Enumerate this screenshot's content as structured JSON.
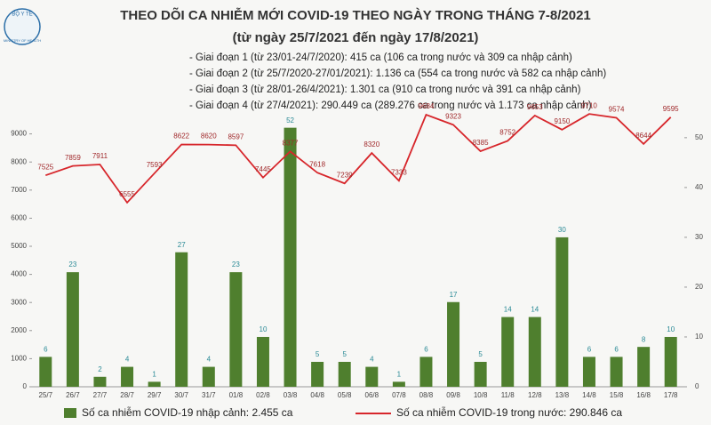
{
  "logo": {
    "top": "BỘ Y TẾ",
    "bottom": "MINISTRY OF HEALTH"
  },
  "chart_data": {
    "type": "combo",
    "title": "THEO DÕI CA NHIỄM MỚI COVID-19 THEO NGÀY TRONG THÁNG 7-8/2021",
    "subtitle": "(từ ngày 25/7/2021 đến ngày 17/8/2021)",
    "annotations": [
      "- Giai đoạn 1 (từ 23/01-24/7/2020): 415 ca (106 ca trong nước và 309 ca nhập cảnh)",
      "- Giai đoạn 2 (từ 25/7/2020-27/01/2021): 1.136 ca (554 ca trong nước và 582 ca nhập cảnh)",
      "- Giai đoạn 3 (từ 28/01-26/4/2021): 1.301 ca (910 ca trong nước và 391 ca nhập cảnh)",
      "- Giai đoạn 4 (từ 27/4/2021): 290.449 ca (289.276 ca trong nước và 1.173 ca nhập cảnh)"
    ],
    "categories": [
      "25/7",
      "26/7",
      "27/7",
      "28/7",
      "29/7",
      "30/7",
      "31/7",
      "01/8",
      "02/8",
      "03/8",
      "04/8",
      "05/8",
      "06/8",
      "07/8",
      "08/8",
      "09/8",
      "10/8",
      "11/8",
      "12/8",
      "13/8",
      "14/8",
      "15/8",
      "16/8",
      "17/8"
    ],
    "series": [
      {
        "name": "Số ca nhiễm COVID-19 nhập cảnh: 2.455 ca",
        "type": "bar",
        "axis": "y2",
        "color": "#4f7f2e",
        "values": [
          6,
          23,
          2,
          4,
          1,
          27,
          4,
          23,
          10,
          52,
          5,
          5,
          4,
          1,
          6,
          17,
          5,
          14,
          14,
          30,
          6,
          6,
          8,
          10
        ]
      },
      {
        "name": "Số ca nhiễm COVID-19 trong nước: 290.846 ca",
        "type": "line",
        "axis": "y",
        "color": "#d7262b",
        "values": [
          7525,
          7859,
          7911,
          6555,
          7593,
          8622,
          8620,
          8597,
          7445,
          8377,
          7618,
          7239,
          8320,
          7333,
          9684,
          9323,
          8385,
          8752,
          9653,
          9150,
          9710,
          9574,
          8644,
          9595
        ]
      }
    ],
    "ylim": [
      0,
      10000
    ],
    "yticks": [
      0,
      1000,
      2000,
      3000,
      4000,
      5000,
      6000,
      7000,
      8000,
      9000
    ],
    "y2lim": [
      0,
      56.4
    ],
    "y2ticks": [
      0,
      10,
      20,
      30,
      40,
      50
    ]
  }
}
